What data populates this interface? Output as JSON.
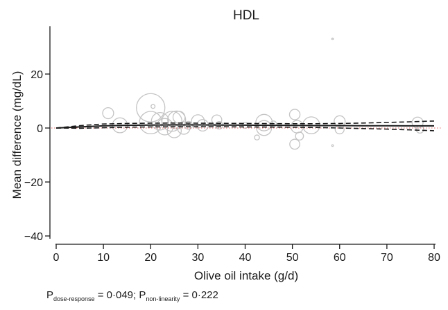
{
  "chart_data": {
    "type": "scatter",
    "title": "HDL",
    "xlabel": "Olive oil intake (g/d)",
    "ylabel": "Mean difference (mg/dL)",
    "xlim": [
      -1,
      81
    ],
    "ylim": [
      -42,
      40
    ],
    "xticks": [
      0,
      10,
      20,
      30,
      40,
      50,
      60,
      70,
      80
    ],
    "yticks": [
      20,
      0,
      -20,
      -40
    ],
    "ytick_labels": [
      "20",
      "0",
      "−20",
      "−40"
    ],
    "grid": false,
    "reference_line_y": 0,
    "fit": {
      "x": [
        0,
        5,
        10,
        15,
        20,
        25,
        30,
        35,
        40,
        45,
        50,
        55,
        60,
        65,
        70,
        75,
        80
      ],
      "y": [
        0,
        0.4,
        0.8,
        1.0,
        1.1,
        1.15,
        1.15,
        1.1,
        1.05,
        1.0,
        0.95,
        0.9,
        0.9,
        0.85,
        0.85,
        0.8,
        0.8
      ],
      "lower": [
        0,
        -0.1,
        0.1,
        0.3,
        0.4,
        0.45,
        0.5,
        0.45,
        0.4,
        0.35,
        0.3,
        0.2,
        0.0,
        -0.2,
        -0.4,
        -0.7,
        -1.0
      ],
      "upper": [
        0,
        0.9,
        1.5,
        1.7,
        1.8,
        1.85,
        1.8,
        1.75,
        1.7,
        1.65,
        1.6,
        1.6,
        1.7,
        1.85,
        2.05,
        2.3,
        2.6
      ]
    },
    "studies": [
      {
        "x": 11,
        "y": 5.5,
        "weight": 2.2
      },
      {
        "x": 13.5,
        "y": 1.0,
        "weight": 3
      },
      {
        "x": 20,
        "y": 7.5,
        "weight": 5.7
      },
      {
        "x": 20,
        "y": 2.0,
        "weight": 4.5
      },
      {
        "x": 20.5,
        "y": 8.0,
        "weight": 0.8
      },
      {
        "x": 22,
        "y": 2.5,
        "weight": 3.5
      },
      {
        "x": 23,
        "y": 0.5,
        "weight": 3.3
      },
      {
        "x": 24.5,
        "y": 2.5,
        "weight": 4
      },
      {
        "x": 25,
        "y": -1.0,
        "weight": 2.8
      },
      {
        "x": 25.5,
        "y": 3.0,
        "weight": 3.6
      },
      {
        "x": 26,
        "y": 4.0,
        "weight": 2.4
      },
      {
        "x": 27,
        "y": 0.0,
        "weight": 2.5
      },
      {
        "x": 28,
        "y": 1.0,
        "weight": 1.6
      },
      {
        "x": 30,
        "y": 2.5,
        "weight": 2.6
      },
      {
        "x": 31,
        "y": 1.0,
        "weight": 2.3
      },
      {
        "x": 34,
        "y": 3.0,
        "weight": 2
      },
      {
        "x": 34.5,
        "y": 1.0,
        "weight": 1.5
      },
      {
        "x": 40,
        "y": 1.0,
        "weight": 1.2
      },
      {
        "x": 42.5,
        "y": -3.5,
        "weight": 1
      },
      {
        "x": 44,
        "y": 2.0,
        "weight": 3.3
      },
      {
        "x": 44,
        "y": 0.0,
        "weight": 3
      },
      {
        "x": 46,
        "y": 1.5,
        "weight": 1.2
      },
      {
        "x": 50.5,
        "y": 5.0,
        "weight": 2.1
      },
      {
        "x": 50.5,
        "y": -6.0,
        "weight": 2.0
      },
      {
        "x": 51,
        "y": 0.5,
        "weight": 2.5
      },
      {
        "x": 51.5,
        "y": -3.0,
        "weight": 1.6
      },
      {
        "x": 54,
        "y": 1.0,
        "weight": 3.4
      },
      {
        "x": 58.5,
        "y": 33.0,
        "weight": 0.3
      },
      {
        "x": 58.5,
        "y": -6.5,
        "weight": 0.3
      },
      {
        "x": 60,
        "y": 2.5,
        "weight": 2.2
      },
      {
        "x": 60,
        "y": -0.5,
        "weight": 1.8
      },
      {
        "x": 76.5,
        "y": 2.0,
        "weight": 2.2
      },
      {
        "x": 77,
        "y": -0.5,
        "weight": 1.5
      }
    ]
  },
  "annotation": {
    "p_prefix": "P",
    "dose_response_label": "dose-response",
    "dose_response_value": " = 0·049; P",
    "nonlinearity_label": "non-linearity",
    "nonlinearity_value": " = 0·222"
  }
}
